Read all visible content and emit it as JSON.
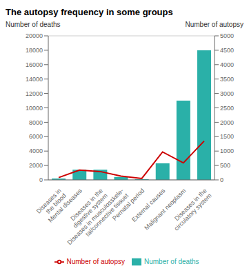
{
  "chart_data": {
    "type": "bar",
    "title": "The autopsy frequency in some groups",
    "ylabel": "Number of deaths",
    "y2label": "Number of autopsy",
    "categories": [
      "Diseases in\nthe blood",
      "Mental diseases",
      "Diseases in the\ndigestive system",
      "Diseases in musculosskele-\ntal/connective tissuet",
      "Pernatal period",
      "External causes",
      "Malignant neoplasm",
      "Diseases in the\ncirculatory system"
    ],
    "series": [
      {
        "name": "Number of deaths",
        "type": "bar",
        "color": "#2ab0a8",
        "values": [
          200,
          1400,
          1400,
          400,
          100,
          2300,
          11000,
          18000
        ]
      },
      {
        "name": "Number of autopsy",
        "type": "line",
        "axis": "y2",
        "color": "#cc0000",
        "values": [
          80,
          340,
          290,
          130,
          50,
          970,
          590,
          1350
        ]
      }
    ],
    "ylim": [
      0,
      20000
    ],
    "yticks": [
      0,
      2000,
      4000,
      6000,
      8000,
      10000,
      12000,
      14000,
      16000,
      18000,
      20000
    ],
    "y2lim": [
      0,
      5000
    ],
    "y2ticks": [
      0,
      500,
      1000,
      1500,
      2000,
      2500,
      3000,
      3500,
      4000,
      4500,
      5000
    ],
    "grid": true,
    "legend": "bottom"
  }
}
